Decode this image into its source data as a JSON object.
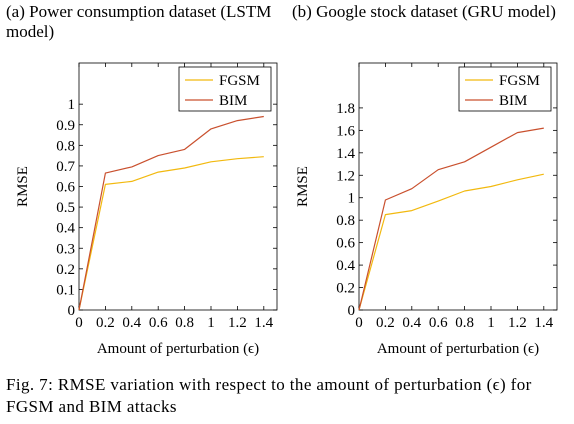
{
  "panels": {
    "a": {
      "title": "(a) Power consumption dataset (LSTM model)"
    },
    "b": {
      "title": "(b) Google stock dataset (GRU model)"
    }
  },
  "caption": "Fig. 7: RMSE variation with respect to the amount of perturbation (ϵ) for FGSM and BIM attacks",
  "colors": {
    "FGSM": "#f2b90f",
    "BIM": "#c9502e"
  },
  "chart_data": [
    {
      "type": "line",
      "xlabel": "Amount of perturbation (ϵ)",
      "ylabel": "RMSE",
      "xlim": [
        0,
        1.5
      ],
      "ylim": [
        0,
        1.2
      ],
      "xticks": [
        0,
        0.2,
        0.4,
        0.6,
        0.8,
        1,
        1.2,
        1.4
      ],
      "xticklabels": [
        "0",
        "0.2",
        "0.4",
        "0.6",
        "0.8",
        "1",
        "1.2",
        "1.4"
      ],
      "yticks": [
        0,
        0.1,
        0.2,
        0.3,
        0.4,
        0.5,
        0.6,
        0.7,
        0.8,
        0.9,
        1
      ],
      "yticklabels": [
        "0",
        "0.1",
        "0.2",
        "0.3",
        "0.4",
        "0.5",
        "0.6",
        "0.7",
        "0.8",
        "0.9",
        "1"
      ],
      "legend": "top-right",
      "x": [
        0,
        0.2,
        0.4,
        0.6,
        0.8,
        1.0,
        1.2,
        1.4
      ],
      "series": [
        {
          "name": "FGSM",
          "values": [
            0,
            0.61,
            0.625,
            0.67,
            0.69,
            0.72,
            0.735,
            0.745
          ]
        },
        {
          "name": "BIM",
          "values": [
            0,
            0.665,
            0.695,
            0.75,
            0.78,
            0.88,
            0.92,
            0.94
          ]
        }
      ]
    },
    {
      "type": "line",
      "xlabel": "Amount of perturbation (ϵ)",
      "ylabel": "RMSE",
      "xlim": [
        0,
        1.5
      ],
      "ylim": [
        0,
        2.2
      ],
      "xticks": [
        0,
        0.2,
        0.4,
        0.6,
        0.8,
        1,
        1.2,
        1.4
      ],
      "xticklabels": [
        "0",
        "0.2",
        "0.4",
        "0.6",
        "0.8",
        "1",
        "1.2",
        "1.4"
      ],
      "yticks": [
        0,
        0.2,
        0.4,
        0.6,
        0.8,
        1,
        1.2,
        1.4,
        1.6,
        1.8
      ],
      "yticklabels": [
        "0",
        "0.2",
        "0.4",
        "0.6",
        "0.8",
        "1",
        "1.2",
        "1.4",
        "1.6",
        "1.8"
      ],
      "legend": "top-right",
      "x": [
        0,
        0.2,
        0.4,
        0.6,
        0.8,
        1.0,
        1.2,
        1.4
      ],
      "series": [
        {
          "name": "FGSM",
          "values": [
            0,
            0.85,
            0.885,
            0.97,
            1.06,
            1.1,
            1.16,
            1.21
          ]
        },
        {
          "name": "BIM",
          "values": [
            0,
            0.98,
            1.08,
            1.25,
            1.32,
            1.45,
            1.58,
            1.62
          ]
        }
      ]
    }
  ]
}
